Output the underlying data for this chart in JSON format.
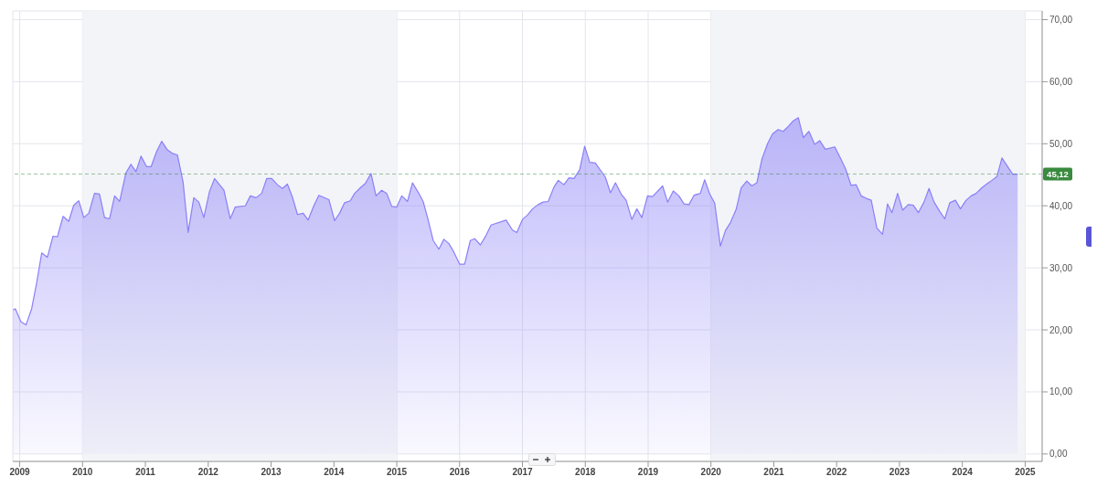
{
  "chart_data": {
    "type": "area",
    "x": [
      2008.89,
      2008.93,
      2009.02,
      2009.1,
      2009.19,
      2009.27,
      2009.35,
      2009.44,
      2009.53,
      2009.6,
      2009.69,
      2009.78,
      2009.86,
      2009.94,
      2010.02,
      2010.1,
      2010.19,
      2010.27,
      2010.35,
      2010.43,
      2010.51,
      2010.59,
      2010.69,
      2010.77,
      2010.85,
      2010.93,
      2011.02,
      2011.09,
      2011.18,
      2011.26,
      2011.35,
      2011.44,
      2011.51,
      2011.6,
      2011.68,
      2011.77,
      2011.85,
      2011.93,
      2012.02,
      2012.1,
      2012.25,
      2012.35,
      2012.43,
      2012.59,
      2012.67,
      2012.76,
      2012.85,
      2012.93,
      2013.01,
      2013.1,
      2013.18,
      2013.26,
      2013.34,
      2013.42,
      2013.51,
      2013.59,
      2013.68,
      2013.76,
      2013.92,
      2014.01,
      2014.09,
      2014.17,
      2014.26,
      2014.33,
      2014.42,
      2014.5,
      2014.59,
      2014.67,
      2014.76,
      2014.84,
      2014.92,
      2015.0,
      2015.08,
      2015.17,
      2015.25,
      2015.34,
      2015.42,
      2015.49,
      2015.58,
      2015.67,
      2015.75,
      2015.83,
      2015.91,
      2016.0,
      2016.08,
      2016.17,
      2016.24,
      2016.33,
      2016.42,
      2016.5,
      2016.74,
      2016.84,
      2016.91,
      2017.0,
      2017.08,
      2017.16,
      2017.25,
      2017.33,
      2017.41,
      2017.5,
      2017.57,
      2017.66,
      2017.74,
      2017.82,
      2017.91,
      2017.99,
      2018.07,
      2018.16,
      2018.32,
      2018.4,
      2018.48,
      2018.57,
      2018.65,
      2018.74,
      2018.82,
      2018.9,
      2018.99,
      2019.07,
      2019.23,
      2019.31,
      2019.4,
      2019.49,
      2019.57,
      2019.65,
      2019.73,
      2019.83,
      2019.9,
      2019.98,
      2020.06,
      2020.15,
      2020.23,
      2020.31,
      2020.4,
      2020.48,
      2020.57,
      2020.65,
      2020.73,
      2020.81,
      2020.9,
      2020.98,
      2021.07,
      2021.15,
      2021.23,
      2021.31,
      2021.39,
      2021.47,
      2021.56,
      2021.65,
      2021.73,
      2021.82,
      2021.97,
      2022.06,
      2022.14,
      2022.23,
      2022.31,
      2022.39,
      2022.47,
      2022.55,
      2022.64,
      2022.73,
      2022.81,
      2022.88,
      2022.97,
      2023.05,
      2023.14,
      2023.22,
      2023.3,
      2023.39,
      2023.47,
      2023.55,
      2023.64,
      2023.72,
      2023.8,
      2023.89,
      2023.97,
      2024.06,
      2024.14,
      2024.22,
      2024.31,
      2024.4,
      2024.47,
      2024.55,
      2024.63,
      2024.8,
      2024.88
    ],
    "series": [
      {
        "color": "#8a80f8",
        "values": [
          23.2,
          23.4,
          21.3,
          20.8,
          23.4,
          27.6,
          32.4,
          31.7,
          35.1,
          35.0,
          38.3,
          37.5,
          40.1,
          40.8,
          38.1,
          38.8,
          42.0,
          41.9,
          38.1,
          37.9,
          41.6,
          40.7,
          45.3,
          46.7,
          45.5,
          48.0,
          46.3,
          46.3,
          48.8,
          50.4,
          49.0,
          48.4,
          48.2,
          43.8,
          35.7,
          41.3,
          40.6,
          38.1,
          42.3,
          44.4,
          42.5,
          37.9,
          39.8,
          40.0,
          41.6,
          41.3,
          42.0,
          44.4,
          44.4,
          43.4,
          42.8,
          43.5,
          41.4,
          38.6,
          38.8,
          37.7,
          40.0,
          41.7,
          41.0,
          37.6,
          38.8,
          40.5,
          40.8,
          42.0,
          42.9,
          43.6,
          45.2,
          41.6,
          42.5,
          42.0,
          39.9,
          39.8,
          41.6,
          40.7,
          43.7,
          42.2,
          40.7,
          38.1,
          34.4,
          33.0,
          34.6,
          33.9,
          32.5,
          30.6,
          30.6,
          34.4,
          34.7,
          33.7,
          35.2,
          36.9,
          37.7,
          36.1,
          35.7,
          37.8,
          38.5,
          39.5,
          40.2,
          40.6,
          40.7,
          43.0,
          44.1,
          43.4,
          44.5,
          44.4,
          45.8,
          49.6,
          47.0,
          46.9,
          44.6,
          42.1,
          43.7,
          41.9,
          40.9,
          37.8,
          39.5,
          38.1,
          41.6,
          41.5,
          43.2,
          40.6,
          42.4,
          41.6,
          40.3,
          40.2,
          41.7,
          42.0,
          44.2,
          41.9,
          40.4,
          33.5,
          36.0,
          37.3,
          39.4,
          42.9,
          44.0,
          43.2,
          43.7,
          47.5,
          50.0,
          51.6,
          52.3,
          52.0,
          52.8,
          53.7,
          54.2,
          51.0,
          52.0,
          49.9,
          50.5,
          49.1,
          49.5,
          47.7,
          46.0,
          43.3,
          43.4,
          41.6,
          41.2,
          40.9,
          36.4,
          35.4,
          40.3,
          38.9,
          42.0,
          39.3,
          40.2,
          40.1,
          38.9,
          40.6,
          42.8,
          40.6,
          39.1,
          37.9,
          40.5,
          40.9,
          39.5,
          40.9,
          41.6,
          42.0,
          42.9,
          43.6,
          44.1,
          44.7,
          47.7,
          45.1,
          45.1
        ]
      }
    ],
    "xlim": [
      2008.89,
      2025.27
    ],
    "xticks": [
      2009,
      2010,
      2011,
      2012,
      2013,
      2014,
      2015,
      2016,
      2017,
      2018,
      2019,
      2020,
      2021,
      2022,
      2023,
      2024,
      2025
    ],
    "ylim": [
      -1.2,
      71.4
    ],
    "yticks": [
      {
        "value": 0,
        "label": "0,00"
      },
      {
        "value": 10,
        "label": "10,00"
      },
      {
        "value": 20,
        "label": "20,00"
      },
      {
        "value": 30,
        "label": "30,00"
      },
      {
        "value": 40,
        "label": "40,00"
      },
      {
        "value": 50,
        "label": "50,00"
      },
      {
        "value": 60,
        "label": "60,00"
      },
      {
        "value": 70,
        "label": "70,00"
      }
    ],
    "grid": true,
    "ref_lines": [
      {
        "axis": "y",
        "value": 45.12,
        "label": "45,12",
        "color": "#3a8a3f",
        "line_style": "dashed"
      }
    ],
    "bands": [
      {
        "axis": "x",
        "from": 2010,
        "to": 2015,
        "color": "#f3f4f8"
      },
      {
        "axis": "x",
        "from": 2020,
        "to": 2025,
        "color": "#f3f4f8"
      }
    ]
  }
}
